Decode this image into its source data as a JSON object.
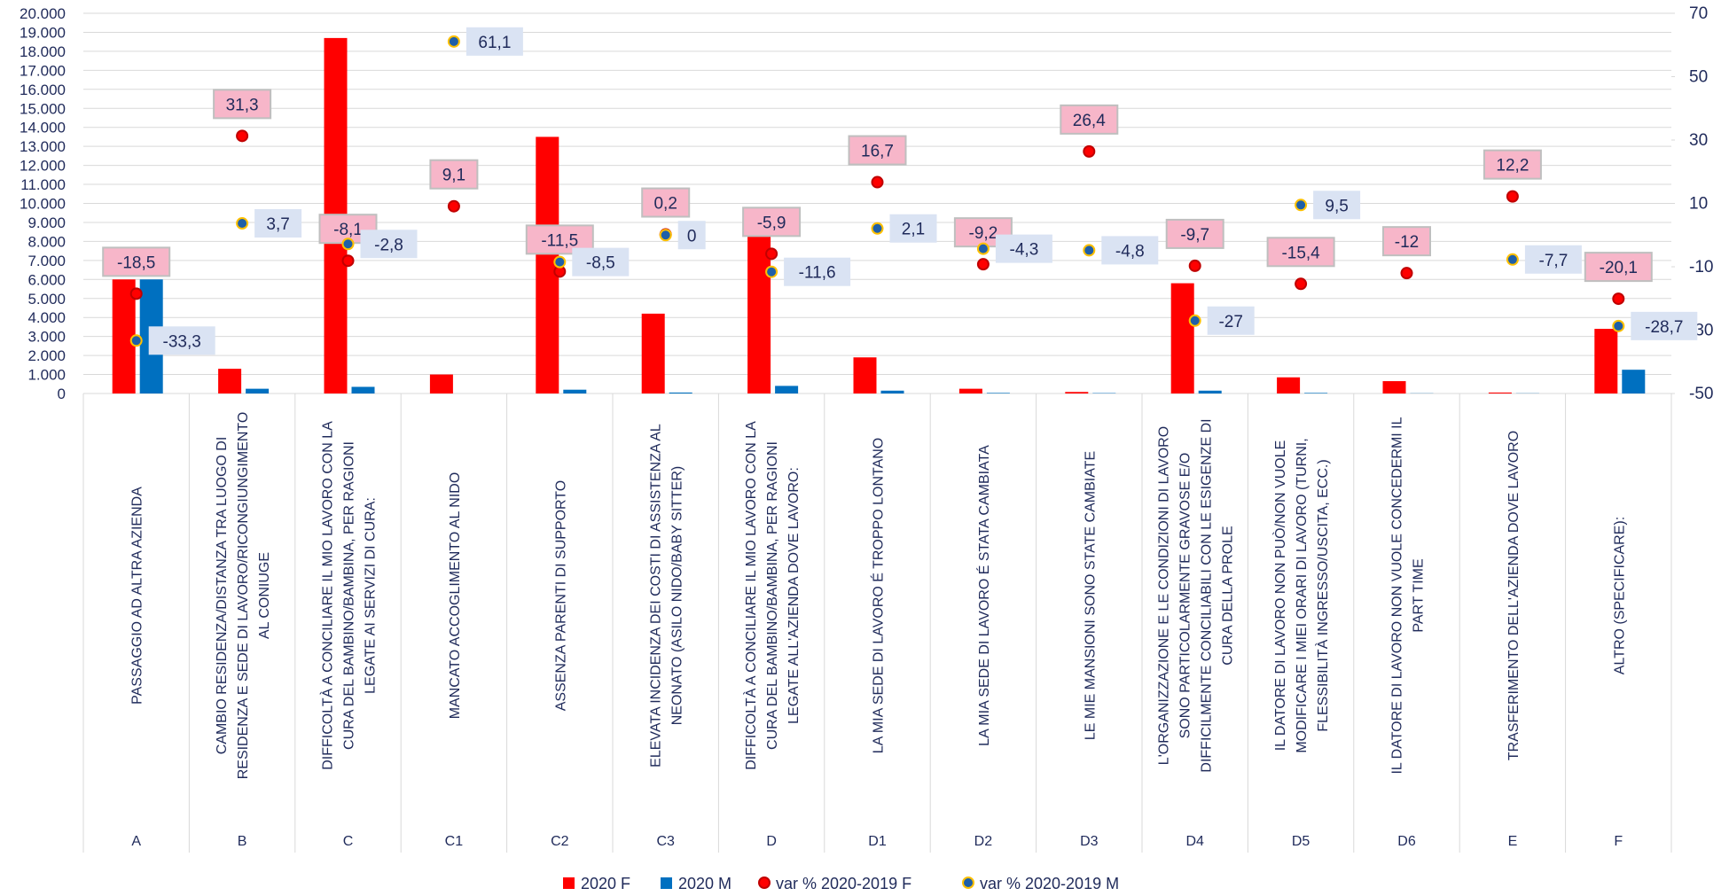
{
  "chart_data": {
    "type": "bar_dot_combo",
    "categories": [
      "A",
      "B",
      "C",
      "C1",
      "C2",
      "C3",
      "D",
      "D1",
      "D2",
      "D3",
      "D4",
      "D5",
      "D6",
      "E",
      "F"
    ],
    "category_descriptions": [
      [
        "PASSAGGIO AD ALTRA AZIENDA"
      ],
      [
        "CAMBIO RESIDENZA/DISTANZA TRA LUOGO DI",
        "RESIDENZA E SEDE DI LAVORO/RICONGIUNGIMENTO",
        "AL CONIUGE"
      ],
      [
        "DIFFICOLTÀ A CONCILIARE IL MIO LAVORO CON LA",
        "CURA DEL BAMBINO/BAMBINA, PER RAGIONI",
        "LEGATE AI SERVIZI DI CURA:"
      ],
      [
        "MANCATO ACCOGLIMENTO AL NIDO"
      ],
      [
        "ASSENZA PARENTI DI SUPPORTO"
      ],
      [
        "ELEVATA INCIDENZA DEI COSTI DI ASSISTENZA AL",
        "NEONATO (ASILO NIDO/BABY SITTER)"
      ],
      [
        "DIFFICOLTÀ A CONCILIARE IL MIO LAVORO CON LA",
        "CURA DEL BAMBINO/BAMBINA, PER RAGIONI",
        "LEGATE ALL'AZIENDA DOVE LAVORO:"
      ],
      [
        "LA MIA SEDE DI LAVORO É TROPPO LONTANO"
      ],
      [
        "LA MIA SEDE DI LAVORO É STATA CAMBIATA"
      ],
      [
        "LE MIE MANSIONI SONO STATE CAMBIATE"
      ],
      [
        "L'ORGANIZZAZIONE E LE CONDIZIONI DI LAVORO",
        "SONO PARTICOLARMENTE GRAVOSE E/O",
        "DIFFICILMENTE CONCILIABILI CON LE ESIGENZE DI",
        "CURA DELLA PROLE"
      ],
      [
        "IL DATORE DI LAVORO NON PUÒ/NON VUOLE",
        "MODIFICARE I MIEI ORARI DI LAVORO (TURNI,",
        "FLESSIBILITÀ INGRESSO/USCITA, ECC.)"
      ],
      [
        "IL DATORE DI LAVORO NON VUOLE CONCEDERMI IL",
        "PART TIME"
      ],
      [
        "TRASFERIMENTO DELL'AZIENDA DOVE LAVORO"
      ],
      [
        "ALTRO (SPECIFICARE):"
      ]
    ],
    "series": [
      {
        "name": "2020 F",
        "color": "#ff0000",
        "kind": "bar",
        "values": [
          6000,
          1300,
          18700,
          1000,
          13500,
          4200,
          9800,
          1900,
          250,
          80,
          5800,
          850,
          650,
          50,
          3400
        ]
      },
      {
        "name": "2020 M",
        "color": "#0070c0",
        "kind": "bar",
        "values": [
          6000,
          250,
          350,
          0,
          200,
          50,
          400,
          150,
          30,
          20,
          150,
          30,
          10,
          10,
          1250
        ]
      },
      {
        "name": "var % 2020-2019 F",
        "color": "#ff0000",
        "kind": "dot",
        "axis": "y2",
        "label_color": "#f7b6c9",
        "values": [
          -18.5,
          31.3,
          -8.1,
          9.1,
          -11.5,
          0.2,
          -5.9,
          16.7,
          -9.2,
          26.4,
          -9.7,
          -15.4,
          -12,
          12.2,
          -20.1
        ],
        "value_labels": [
          "-18,5",
          "31,3",
          "-8,1",
          "9,1",
          "-11,5",
          "0,2",
          "-5,9",
          "16,7",
          "-9,2",
          "26,4",
          "-9,7",
          "-15,4",
          "-12",
          "12,2",
          "-20,1"
        ]
      },
      {
        "name": "var % 2020-2019 M",
        "color": "#1f5fa8",
        "kind": "dot",
        "axis": "y2",
        "label_color": "#dae3f3",
        "values": [
          -33.3,
          3.7,
          -2.8,
          61.1,
          -8.5,
          0,
          -11.6,
          2.1,
          -4.3,
          -4.8,
          -27,
          9.5,
          null,
          -7.7,
          -28.7
        ],
        "value_labels": [
          "-33,3",
          "3,7",
          "-2,8",
          "61,1",
          "-8,5",
          "0",
          "-11,6",
          "2,1",
          "-4,3",
          "-4,8",
          "-27",
          "9,5",
          null,
          "-7,7",
          "-28,7"
        ]
      }
    ],
    "ylim": [
      0,
      20000
    ],
    "yticks": [
      0,
      {
        "value": 1000,
        "label": "1.000"
      },
      {
        "value": 2000,
        "label": "2.000"
      },
      {
        "value": 3000,
        "label": "3.000"
      },
      {
        "value": 4000,
        "label": "4.000"
      },
      {
        "value": 5000,
        "label": "5.000"
      },
      {
        "value": 6000,
        "label": "6.000"
      },
      {
        "value": 7000,
        "label": "7.000"
      },
      {
        "value": 8000,
        "label": "8.000"
      },
      {
        "value": 9000,
        "label": "9.000"
      },
      {
        "value": 10000,
        "label": "10.000"
      },
      {
        "value": 11000,
        "label": "11.000"
      },
      {
        "value": 12000,
        "label": "12.000"
      },
      {
        "value": 13000,
        "label": "13.000"
      },
      {
        "value": 14000,
        "label": "14.000"
      },
      {
        "value": 15000,
        "label": "15.000"
      },
      {
        "value": 16000,
        "label": "16.000"
      },
      {
        "value": 17000,
        "label": "17.000"
      },
      {
        "value": 18000,
        "label": "18.000"
      },
      {
        "value": 19000,
        "label": "19.000"
      },
      {
        "value": 20000,
        "label": "20.000"
      }
    ],
    "y2lim": [
      -50,
      70
    ],
    "y2ticks": [
      -50,
      -30,
      -10,
      10,
      30,
      50,
      70
    ],
    "grid": true,
    "legend": "bottom"
  }
}
